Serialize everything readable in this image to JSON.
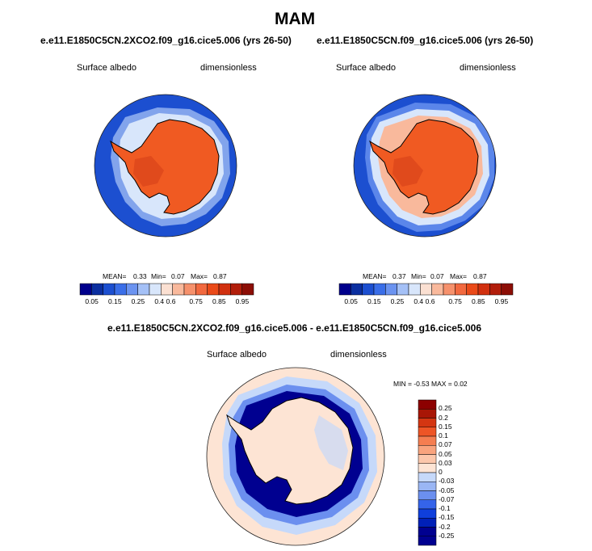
{
  "figure": {
    "title": "MAM"
  },
  "colors": {
    "abs_scale": [
      "#00008c",
      "#0b2fa0",
      "#1c4fd0",
      "#3a6ee8",
      "#6b93f0",
      "#a4c0f6",
      "#d8e6fb",
      "#fbe0d2",
      "#f9b99c",
      "#f6916c",
      "#f2693f",
      "#ea4a19",
      "#d1300f",
      "#b21e0b",
      "#8c0e06"
    ],
    "diff_scale": [
      "#000090",
      "#0020b8",
      "#0f3fdc",
      "#3564ea",
      "#6b8fef",
      "#9ab6f4",
      "#c6d9fa",
      "#fde4d4",
      "#fcc7ab",
      "#f9a47e",
      "#f57e51",
      "#ee5526",
      "#d43612",
      "#a81606",
      "#8c0000"
    ],
    "ocean_blue": "#1c4fd0",
    "ice_orange": "#f05a22",
    "ice_dark": "#e0431a",
    "diff_background": "#fde4d4"
  },
  "chart_data": [
    {
      "type": "heatmap",
      "title": "e.e11.E1850C5CN.2XCO2.f09_g16.cice5.006 (yrs 26-50)",
      "left_label": "Surface albedo",
      "right_label": "dimensionless",
      "stats": {
        "mean_label": "MEAN=",
        "mean": "0.33",
        "min_label": "Min=",
        "min": "0.07",
        "max_label": "Max=",
        "max": "0.87"
      },
      "colorbar_ticks": [
        "0.05",
        "0.15",
        "0.25",
        "0.4",
        "0.6",
        "0.75",
        "0.85",
        "0.95"
      ]
    },
    {
      "type": "heatmap",
      "title": "e.e11.E1850C5CN.f09_g16.cice5.006 (yrs 26-50)",
      "left_label": "Surface albedo",
      "right_label": "dimensionless",
      "stats": {
        "mean_label": "MEAN=",
        "mean": "0.37",
        "min_label": "Min=",
        "min": "0.07",
        "max_label": "Max=",
        "max": "0.87"
      },
      "colorbar_ticks": [
        "0.05",
        "0.15",
        "0.25",
        "0.4",
        "0.6",
        "0.75",
        "0.85",
        "0.95"
      ]
    },
    {
      "type": "heatmap",
      "title": "e.e11.E1850C5CN.2XCO2.f09_g16.cice5.006 - e.e11.E1850C5CN.f09_g16.cice5.006",
      "left_label": "Surface albedo",
      "right_label": "dimensionless",
      "stats_text": "MIN =  -0.53 MAX =   0.02",
      "colorbar_ticks": [
        "0.25",
        "0.2",
        "0.15",
        "0.1",
        "0.07",
        "0.05",
        "0.03",
        "0",
        "-0.03",
        "-0.05",
        "-0.07",
        "-0.1",
        "-0.15",
        "-0.2",
        "-0.25"
      ]
    }
  ]
}
